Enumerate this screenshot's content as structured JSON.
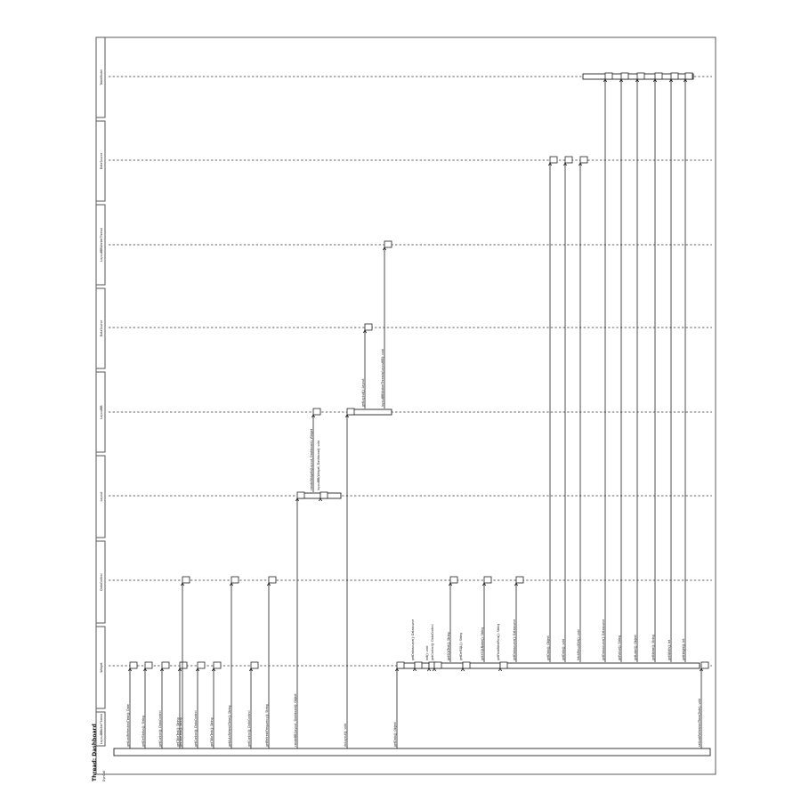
{
  "thread_title": "Thread: Dashboard",
  "caller_label": "DynCall",
  "lifelines": [
    "LayoutBBinterThread",
    "Widget",
    "DataControl",
    "Layout",
    "LayoutBB",
    "DataSource",
    "LayoutBBWorkerThread",
    "DataSource",
    "TableModel"
  ],
  "messages": [
    {
      "label": "getLastRefreshedTime(): Date",
      "from": 0,
      "to": 1
    },
    {
      "label": "getDefStatus(): String",
      "from": 0,
      "to": 1
    },
    {
      "label": "getControl(): DataControl",
      "from": 0,
      "to": 1
    },
    {
      "label": "getTitleText(): String",
      "from": 0,
      "to": 1
    },
    {
      "label": "getTitleText(): String",
      "from": 0,
      "to": 2
    },
    {
      "label": "getControl(): DataControl",
      "from": 0,
      "to": 1
    },
    {
      "label": "getTitleText(): String",
      "from": 0,
      "to": 1
    },
    {
      "label": "getAutoRefreshTime(): String",
      "from": 0,
      "to": 2
    },
    {
      "label": "getControl(): DataControl",
      "from": 0,
      "to": 1
    },
    {
      "label": "getRefreshFrequency(): String",
      "from": 0,
      "to": 2
    },
    {
      "label": "createBB(Layout, Dashboard): Object",
      "from": 0,
      "to": 3
    },
    {
      "label": "createWidgets(Layout, Dashboard): Widget",
      "from": 3,
      "to": 4
    },
    {
      "label": "layoutBB(Widget, Dashboard): void",
      "from": 3,
      "to": 3
    },
    {
      "label": "doLayout(): void",
      "from": 0,
      "to": 4
    },
    {
      "label": "getLayout(): Layout",
      "from": 4,
      "to": 5
    },
    {
      "label": "layoutBBWorkerThreads(LayoutBB): void",
      "from": 4,
      "to": 6
    },
    {
      "label": "getData(): Object",
      "from": 0,
      "to": 1
    },
    {
      "label": "getDatasource(): Datasource",
      "from": 1,
      "to": 1
    },
    {
      "label": "Init(): void",
      "from": 1,
      "to": 1
    },
    {
      "label": "getControl(): DataControl",
      "from": 1,
      "to": 1
    },
    {
      "label": "getSQLText(): String",
      "from": 1,
      "to": 2
    },
    {
      "label": "getDefSQL(): String",
      "from": 1,
      "to": 1
    },
    {
      "label": "getXSQLName(): String",
      "from": 1,
      "to": 2
    },
    {
      "label": "getFromNextRow(): String",
      "from": 1,
      "to": 1
    },
    {
      "label": "getDatasource(): Datasource",
      "from": 1,
      "to": 2
    },
    {
      "label": "getData(): Object",
      "from": 1,
      "to": 7
    },
    {
      "label": "getData(): void",
      "from": 1,
      "to": 7
    },
    {
      "label": "fetchResultSet(): void",
      "from": 1,
      "to": 7
    },
    {
      "label": "getDatasource(): Datasource",
      "from": 1,
      "to": 8
    },
    {
      "label": "getValue(): String",
      "from": 1,
      "to": 8
    },
    {
      "label": "getLabel(): Object",
      "from": 1,
      "to": 8
    },
    {
      "label": "getName(): String",
      "from": 1,
      "to": 8
    },
    {
      "label": "getWidth(): int",
      "from": 1,
      "to": 8
    },
    {
      "label": "getHeight(): int",
      "from": 1,
      "to": 8
    },
    {
      "label": "setLastRefreshedTime(Date): void",
      "from": 0,
      "to": 1
    }
  ]
}
